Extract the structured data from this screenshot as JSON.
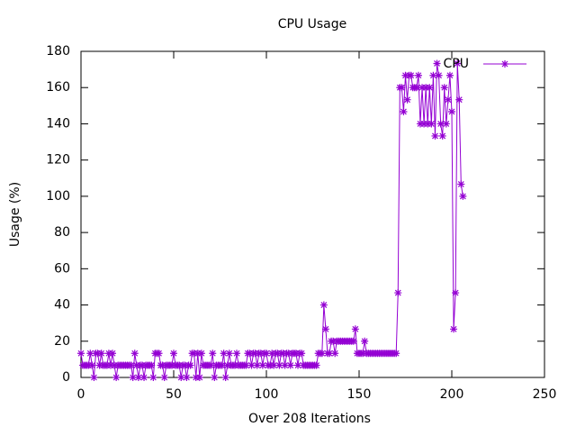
{
  "chart_data": {
    "type": "line",
    "title": "CPU Usage",
    "x_label": "Over 208 Iterations",
    "y_label": "Usage (%)",
    "legend_position": "top-right",
    "series": [
      {
        "name": "CPU",
        "color": "#9400d3",
        "marker": "star",
        "x": [
          0,
          1,
          2,
          3,
          4,
          5,
          6,
          7,
          8,
          9,
          10,
          11,
          12,
          13,
          14,
          15,
          16,
          17,
          18,
          19,
          20,
          21,
          22,
          23,
          24,
          25,
          26,
          27,
          28,
          29,
          30,
          31,
          32,
          33,
          34,
          35,
          36,
          37,
          38,
          39,
          40,
          41,
          42,
          43,
          44,
          45,
          46,
          47,
          48,
          49,
          50,
          51,
          52,
          53,
          54,
          55,
          56,
          57,
          58,
          59,
          60,
          61,
          62,
          63,
          64,
          65,
          66,
          67,
          68,
          69,
          70,
          71,
          72,
          73,
          74,
          75,
          76,
          77,
          78,
          79,
          80,
          81,
          82,
          83,
          84,
          85,
          86,
          87,
          88,
          89,
          90,
          91,
          92,
          93,
          94,
          95,
          96,
          97,
          98,
          99,
          100,
          101,
          102,
          103,
          104,
          105,
          106,
          107,
          108,
          109,
          110,
          111,
          112,
          113,
          114,
          115,
          116,
          117,
          118,
          119,
          120,
          121,
          122,
          123,
          124,
          125,
          126,
          127,
          128,
          129,
          130,
          131,
          132,
          133,
          134,
          135,
          136,
          137,
          138,
          139,
          140,
          141,
          142,
          143,
          144,
          145,
          146,
          147,
          148,
          149,
          150,
          151,
          152,
          153,
          154,
          155,
          156,
          157,
          158,
          159,
          160,
          161,
          162,
          163,
          164,
          165,
          166,
          167,
          168,
          169,
          170,
          171,
          172,
          173,
          174,
          175,
          176,
          177,
          178,
          179,
          180,
          181,
          182,
          183,
          184,
          185,
          186,
          187,
          188,
          189,
          190,
          191,
          192,
          193,
          194,
          195,
          196,
          197,
          198,
          199,
          200,
          201,
          202,
          203,
          204,
          205,
          206
        ],
        "values": [
          13.3,
          6.7,
          6.7,
          6.7,
          6.7,
          13.3,
          6.7,
          0,
          13.3,
          13.3,
          6.7,
          13.3,
          6.7,
          6.7,
          6.7,
          13.3,
          6.7,
          13.3,
          6.7,
          0,
          6.7,
          6.7,
          6.7,
          6.7,
          6.7,
          6.7,
          6.7,
          6.7,
          0,
          13.3,
          6.7,
          0,
          6.7,
          6.7,
          0,
          6.7,
          6.7,
          6.7,
          6.7,
          0,
          13.3,
          13.3,
          13.3,
          6.7,
          6.7,
          0,
          6.7,
          6.7,
          6.7,
          6.7,
          13.3,
          6.7,
          6.7,
          6.7,
          0,
          6.7,
          6.7,
          0,
          6.7,
          6.7,
          13.3,
          13.3,
          0,
          13.3,
          0,
          13.3,
          6.7,
          6.7,
          6.7,
          6.7,
          6.7,
          13.3,
          0,
          6.7,
          6.7,
          6.7,
          6.7,
          13.3,
          0,
          6.7,
          13.3,
          6.7,
          6.7,
          6.7,
          13.3,
          6.7,
          6.7,
          6.7,
          6.7,
          6.7,
          13.3,
          13.3,
          6.7,
          13.3,
          13.3,
          6.7,
          13.3,
          13.3,
          6.7,
          13.3,
          13.3,
          6.7,
          6.7,
          13.3,
          6.7,
          13.3,
          13.3,
          6.7,
          13.3,
          13.3,
          6.7,
          13.3,
          13.3,
          6.7,
          13.3,
          13.3,
          13.3,
          6.7,
          13.3,
          13.3,
          6.7,
          6.7,
          6.7,
          6.7,
          6.7,
          6.7,
          6.7,
          6.7,
          13.3,
          13.3,
          13.3,
          40,
          26.7,
          13.3,
          13.3,
          20,
          20,
          13.3,
          20,
          20,
          20,
          20,
          20,
          20,
          20,
          20,
          20,
          20,
          26.7,
          13.3,
          13.3,
          13.3,
          13.3,
          20,
          13.3,
          13.3,
          13.3,
          13.3,
          13.3,
          13.3,
          13.3,
          13.3,
          13.3,
          13.3,
          13.3,
          13.3,
          13.3,
          13.3,
          13.3,
          13.3,
          13.3,
          46.7,
          160,
          160,
          146.7,
          166.7,
          153.3,
          166.7,
          166.7,
          160,
          160,
          160,
          166.7,
          140,
          160,
          140,
          160,
          140,
          160,
          140,
          166.7,
          133.3,
          173.3,
          166.7,
          140,
          133.3,
          160,
          140,
          153.3,
          166.7,
          146.7,
          26.7,
          46.7,
          173.3,
          153.3,
          106.7,
          100
        ]
      }
    ],
    "xlim": [
      0,
      250
    ],
    "xticks": [
      0,
      50,
      100,
      150,
      200,
      250
    ],
    "ylim": [
      0,
      180
    ],
    "yticks": [
      0,
      20,
      40,
      60,
      80,
      100,
      120,
      140,
      160,
      180
    ]
  }
}
